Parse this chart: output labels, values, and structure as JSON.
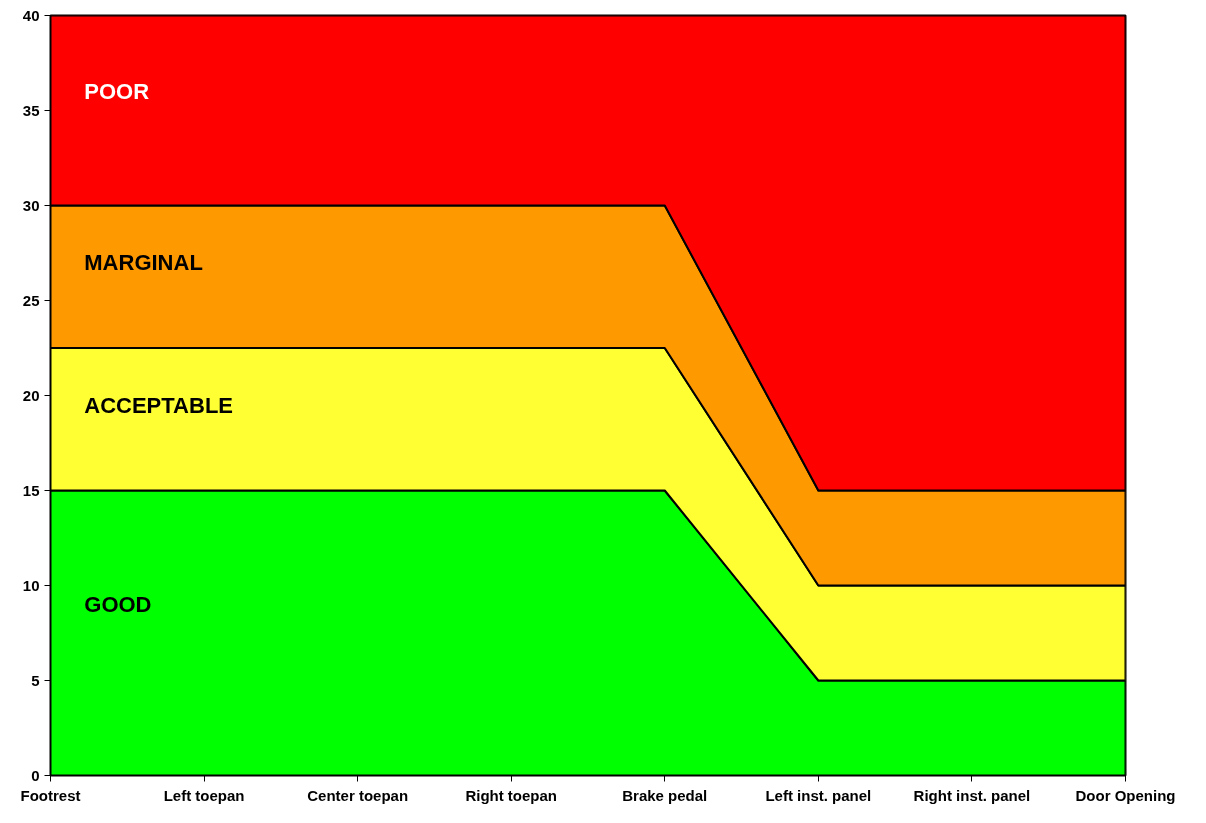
{
  "chart_data": {
    "type": "area",
    "stacked": true,
    "categories": [
      "Footrest",
      "Left toepan",
      "Center toepan",
      "Right toepan",
      "Brake pedal",
      "Left inst. panel",
      "Right inst. panel",
      "Door Opening"
    ],
    "series": [
      {
        "name": "GOOD",
        "color": "#00ff00",
        "values": [
          15,
          15,
          15,
          15,
          15,
          5,
          5,
          5
        ]
      },
      {
        "name": "ACCEPTABLE",
        "color": "#ffff33",
        "values": [
          7.5,
          7.5,
          7.5,
          7.5,
          7.5,
          5,
          5,
          5
        ]
      },
      {
        "name": "MARGINAL",
        "color": "#ff9900",
        "values": [
          7.5,
          7.5,
          7.5,
          7.5,
          7.5,
          5,
          5,
          5
        ]
      },
      {
        "name": "POOR",
        "color": "#ff0000",
        "values": [
          10,
          10,
          10,
          10,
          10,
          25,
          25,
          25
        ]
      }
    ],
    "ylim": [
      0,
      40
    ],
    "yticks": [
      0,
      5,
      10,
      15,
      20,
      25,
      30,
      35,
      40
    ],
    "grid": false
  }
}
